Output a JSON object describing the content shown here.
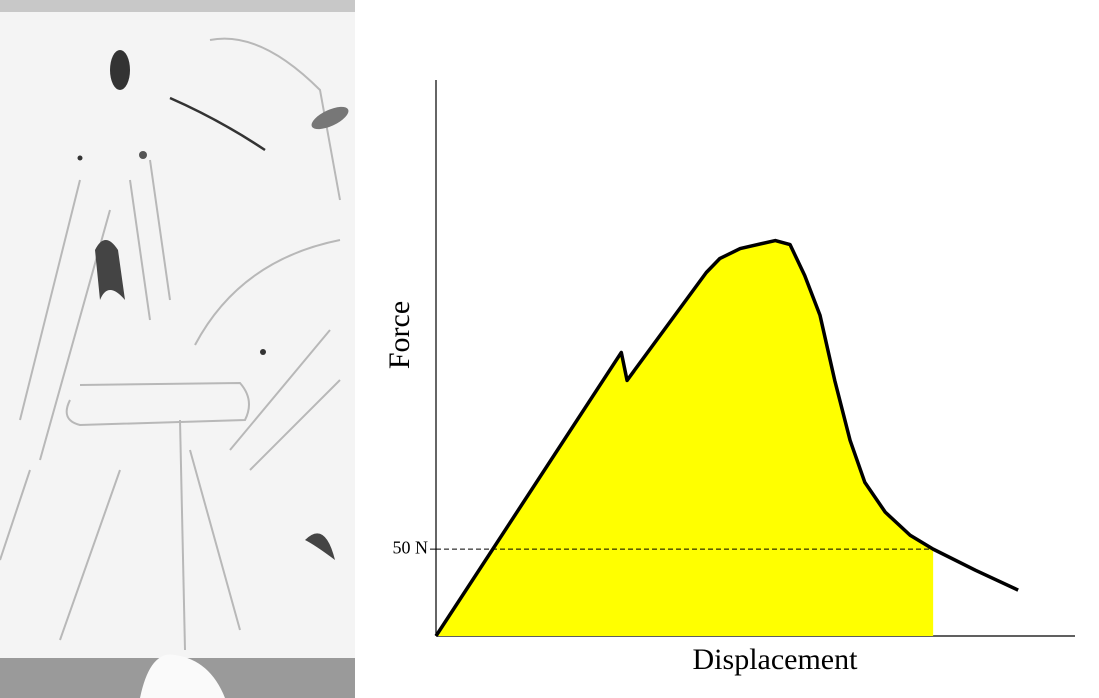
{
  "chart_data": {
    "type": "line",
    "x_label": "Displacement",
    "y_label": "Force",
    "x": [
      0,
      29.0,
      29.9,
      42.3,
      44.4,
      47.6,
      53.1,
      55.4,
      57.7,
      60.1,
      62.4,
      64.8,
      67.1,
      70.3,
      74.2,
      77.8,
      84.4,
      91.1
    ],
    "values": [
      0,
      163.2,
      147.1,
      209.2,
      217.2,
      223.0,
      227.6,
      225.3,
      207.5,
      184.5,
      147.1,
      112.6,
      88.5,
      71.3,
      58.0,
      50,
      37.9,
      26.4
    ],
    "color": "#000000",
    "fill_color": "#ffff00",
    "xlim": [
      0,
      100
    ],
    "ylim": [
      0,
      320
    ],
    "yticks": [
      {
        "value": 50,
        "label": "50 N"
      }
    ]
  }
}
